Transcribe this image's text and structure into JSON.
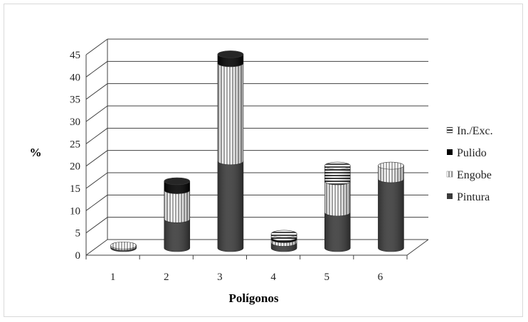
{
  "chart_data": {
    "type": "bar",
    "stacked": true,
    "style": "3d-cylinder",
    "xlabel": "Polígonos",
    "ylabel": "%",
    "ylim": [
      0,
      45
    ],
    "yticks": [
      0,
      5,
      10,
      15,
      20,
      25,
      30,
      35,
      40,
      45
    ],
    "categories": [
      "1",
      "2",
      "3",
      "4",
      "5",
      "6"
    ],
    "grid": true,
    "legend_position": "right",
    "series": [
      {
        "name": "Pintura",
        "values": [
          0.3,
          6.5,
          19.5,
          1.2,
          8.0,
          15.5
        ],
        "pattern": "solid",
        "color": "#3a3a3a"
      },
      {
        "name": "Engobe",
        "values": [
          0.3,
          6.5,
          22.0,
          0.8,
          7.0,
          3.0
        ],
        "pattern": "vertical-lines",
        "color": "#bfbfbf"
      },
      {
        "name": "Pulido",
        "values": [
          0.0,
          2.0,
          2.0,
          0.4,
          0.0,
          0.0
        ],
        "pattern": "solid",
        "color": "#000000"
      },
      {
        "name": "In./Exc.",
        "values": [
          0.0,
          0.0,
          0.0,
          0.8,
          3.5,
          0.0
        ],
        "pattern": "horizontal-lines",
        "color": "#2b2b2b"
      }
    ]
  }
}
